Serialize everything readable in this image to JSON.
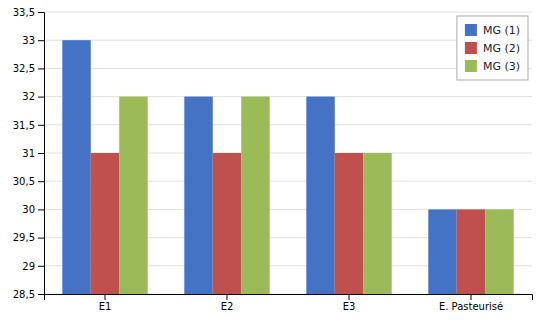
{
  "chart_data": {
    "type": "bar",
    "categories": [
      "E1",
      "E2",
      "E3",
      "E. Pasteurisé"
    ],
    "series": [
      {
        "name": "MG (1)",
        "color": "#4472C4",
        "values": [
          33,
          32,
          32,
          30
        ]
      },
      {
        "name": "MG (2)",
        "color": "#C0504D",
        "values": [
          31,
          31,
          31,
          30
        ]
      },
      {
        "name": "MG (3)",
        "color": "#9BBB59",
        "values": [
          32,
          32,
          31,
          30
        ]
      }
    ],
    "ylim": [
      28.5,
      33.5
    ],
    "yticks": [
      {
        "value": 28.5,
        "label": "28,5"
      },
      29,
      {
        "value": 29.5,
        "label": "29,5"
      },
      30,
      {
        "value": 30.5,
        "label": "30,5"
      },
      31,
      {
        "value": 31.5,
        "label": "31,5"
      },
      32,
      {
        "value": 32.5,
        "label": "32,5"
      },
      33,
      {
        "value": 33.5,
        "label": "33,5"
      }
    ],
    "grid": true,
    "legend": "upper right"
  }
}
